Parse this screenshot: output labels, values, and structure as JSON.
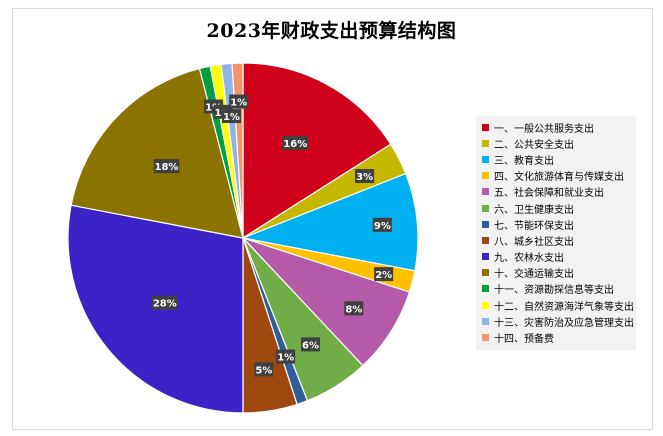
{
  "chart_data": {
    "type": "pie",
    "title": "2023年财政支出预算结构图",
    "slices": [
      {
        "name": "一、一般公共服务支出",
        "value": 16,
        "label": "16%",
        "color": "#d0021b"
      },
      {
        "name": "二、公共安全支出",
        "value": 3,
        "label": "3%",
        "color": "#c5b800"
      },
      {
        "name": "三、教育支出",
        "value": 9,
        "label": "9%",
        "color": "#00b0f0"
      },
      {
        "name": "四、文化旅游体育与传媒支出",
        "value": 2,
        "label": "2%",
        "color": "#ffc000"
      },
      {
        "name": "五、社会保障和就业支出",
        "value": 8,
        "label": "8%",
        "color": "#b55aa8"
      },
      {
        "name": "六、卫生健康支出",
        "value": 6,
        "label": "6%",
        "color": "#70ad47"
      },
      {
        "name": "七、节能环保支出",
        "value": 1,
        "label": "1%",
        "color": "#2e5f9a"
      },
      {
        "name": "八、城乡社区支出",
        "value": 5,
        "label": "5%",
        "color": "#9e480e"
      },
      {
        "name": "九、农林水支出",
        "value": 28,
        "label": "28%",
        "color": "#3b23c8"
      },
      {
        "name": "十、交通运输支出",
        "value": 18,
        "label": "18%",
        "color": "#8b7300"
      },
      {
        "name": "十一、资源勘探信息等支出",
        "value": 1,
        "label": "1%",
        "color": "#00a040"
      },
      {
        "name": "十二、自然资源海洋气象等支出",
        "value": 1,
        "label": "1%",
        "color": "#ffff00"
      },
      {
        "name": "十三、灾害防治及应急管理支出",
        "value": 1,
        "label": "1%",
        "color": "#8fb4e3"
      },
      {
        "name": "十四、预备费",
        "value": 1,
        "label": "1%",
        "color": "#f4956b"
      }
    ],
    "legend_position": "right"
  }
}
